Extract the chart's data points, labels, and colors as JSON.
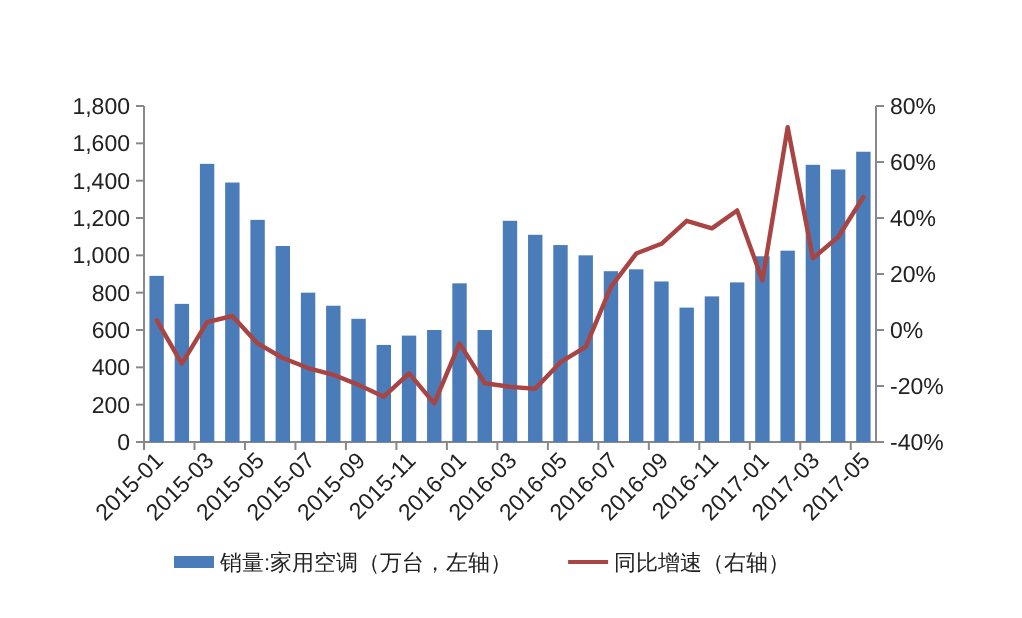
{
  "chart_data": {
    "type": "bar",
    "categories": [
      "2015-01",
      null,
      "2015-03",
      null,
      "2015-05",
      null,
      "2015-07",
      null,
      "2015-09",
      null,
      "2015-11",
      null,
      "2016-01",
      null,
      "2016-03",
      null,
      "2016-05",
      null,
      "2016-07",
      null,
      "2016-09",
      null,
      "2016-11",
      null,
      "2017-01",
      null,
      "2017-03",
      null,
      "2017-05"
    ],
    "series": [
      {
        "name": "销量:家用空调（万台，左轴）",
        "color": "#4a7cb9",
        "values": [
          890,
          740,
          1490,
          1390,
          1190,
          1050,
          800,
          730,
          660,
          520,
          570,
          600,
          850,
          600,
          1185,
          1110,
          1055,
          1000,
          915,
          925,
          860,
          720,
          780,
          855,
          995,
          1025,
          1485,
          1460,
          1555
        ]
      },
      {
        "name": "同比增速（右轴）",
        "type": "line",
        "axis": "y2",
        "color": "#a94442",
        "values": [
          3.5,
          -12,
          2.8,
          5,
          -4.8,
          -10,
          -13.6,
          -16,
          -19.6,
          -23.8,
          -15.5,
          -26.2,
          -4.8,
          -19,
          -20.3,
          -21,
          -11.5,
          -6,
          15.4,
          27.3,
          30.8,
          39,
          36.3,
          42.7,
          17.7,
          72.4,
          25.6,
          33.2,
          47.5
        ]
      }
    ],
    "ylim": [
      0,
      1800
    ],
    "yticks": [
      0,
      200,
      400,
      600,
      800,
      {
        "value": 1000,
        "label": "1,000"
      },
      {
        "value": 1200,
        "label": "1,200"
      },
      {
        "value": 1400,
        "label": "1,400"
      },
      {
        "value": 1600,
        "label": "1,600"
      },
      {
        "value": 1800,
        "label": "1,800"
      }
    ],
    "y2lim": [
      -40,
      80
    ],
    "y2ticks": [
      {
        "value": -40,
        "label": "-40%"
      },
      {
        "value": -20,
        "label": "-20%"
      },
      {
        "value": 0,
        "label": "0%"
      },
      {
        "value": 20,
        "label": "20%"
      },
      {
        "value": 40,
        "label": "40%"
      },
      {
        "value": 60,
        "label": "60%"
      },
      {
        "value": 80,
        "label": "80%"
      }
    ],
    "legend": "bottom",
    "grid": false
  }
}
